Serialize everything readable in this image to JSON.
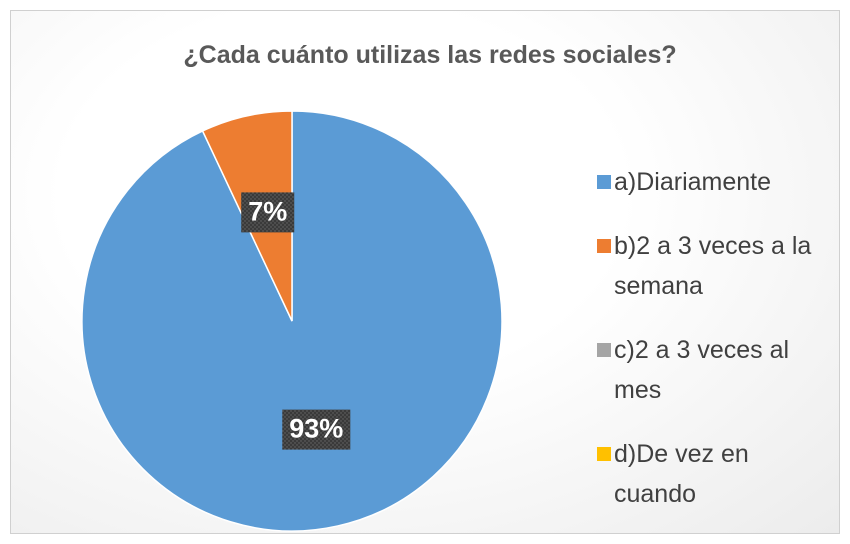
{
  "chart_data": {
    "type": "pie",
    "title": "¿Cada cuánto utilizas las redes sociales?",
    "categories": [
      "a)Diariamente",
      "b)2 a 3 veces a la semana",
      "c)2 a 3 veces al mes",
      "d)De vez en cuando"
    ],
    "values": [
      93,
      7,
      0,
      0
    ],
    "value_labels": [
      "93%",
      "7%",
      null,
      null
    ],
    "colors": [
      "#5b9bd5",
      "#ed7d31",
      "#a5a5a5",
      "#ffc000"
    ],
    "legend": "right"
  }
}
